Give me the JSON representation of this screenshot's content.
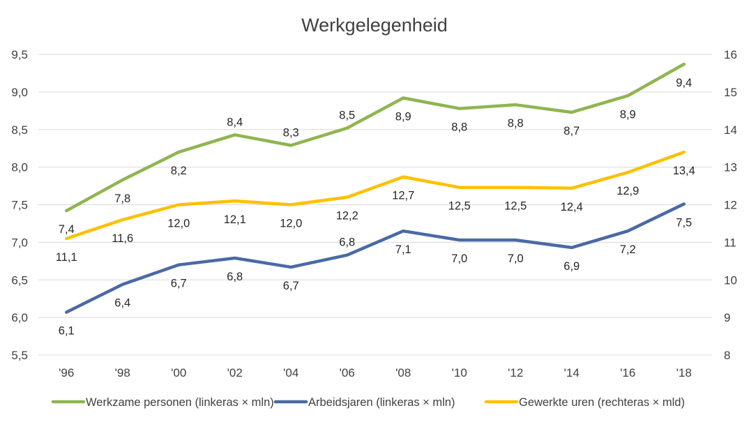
{
  "chart_data": {
    "type": "line",
    "title": "Werkgelegenheid",
    "categories": [
      "'96",
      "'98",
      "'00",
      "'02",
      "'04",
      "'06",
      "'08",
      "'10",
      "'12",
      "'14",
      "'16",
      "'18"
    ],
    "y_left": {
      "ylim": [
        5.5,
        9.5
      ],
      "ticks": [
        "5,5",
        "6,0",
        "6,5",
        "7,0",
        "7,5",
        "8,0",
        "8,5",
        "9,0",
        "9,5"
      ]
    },
    "y_right": {
      "ylim": [
        8,
        16
      ],
      "ticks": [
        "8",
        "9",
        "10",
        "11",
        "12",
        "13",
        "14",
        "15",
        "16"
      ]
    },
    "grid": true,
    "legend_position": "bottom",
    "series": [
      {
        "name": "Werkzame personen (linkeras × mln)",
        "axis": "left",
        "color": "#8fb551",
        "values": [
          7.42,
          7.83,
          8.2,
          8.43,
          8.29,
          8.52,
          8.92,
          8.78,
          8.83,
          8.73,
          8.95,
          9.37
        ],
        "labels": [
          "7,4",
          "7,8",
          "8,2",
          "8,4",
          "8,3",
          "8,5",
          "8,9",
          "8,8",
          "8,8",
          "8,7",
          "8,9",
          "9,4"
        ],
        "label_side": [
          "below",
          "below",
          "below",
          "above",
          "above",
          "above",
          "below",
          "below",
          "below",
          "below",
          "below",
          "below"
        ]
      },
      {
        "name": "Arbeidsjaren (linkeras × mln)",
        "axis": "left",
        "color": "#4a6aa5",
        "values": [
          6.07,
          6.44,
          6.7,
          6.79,
          6.67,
          6.83,
          7.15,
          7.03,
          7.03,
          6.93,
          7.15,
          7.51
        ],
        "labels": [
          "6,1",
          "6,4",
          "6,7",
          "6,8",
          "6,7",
          "6,8",
          "7,1",
          "7,0",
          "7,0",
          "6,9",
          "7,2",
          "7,5"
        ],
        "label_side": [
          "below",
          "below",
          "below",
          "below",
          "below",
          "above",
          "below",
          "below",
          "below",
          "below",
          "below",
          "below"
        ]
      },
      {
        "name": "Gewerkte uren (rechteras × mld)",
        "axis": "right",
        "color": "#ffc000",
        "values": [
          11.1,
          11.6,
          12.0,
          12.1,
          12.0,
          12.2,
          12.74,
          12.46,
          12.46,
          12.44,
          12.86,
          13.4
        ],
        "labels": [
          "11,1",
          "11,6",
          "12,0",
          "12,1",
          "12,0",
          "12,2",
          "12,7",
          "12,5",
          "12,5",
          "12,4",
          "12,9",
          "13,4"
        ],
        "label_side": [
          "below",
          "below",
          "below",
          "below",
          "below",
          "below",
          "below",
          "below",
          "below",
          "below",
          "below",
          "below"
        ]
      }
    ]
  }
}
